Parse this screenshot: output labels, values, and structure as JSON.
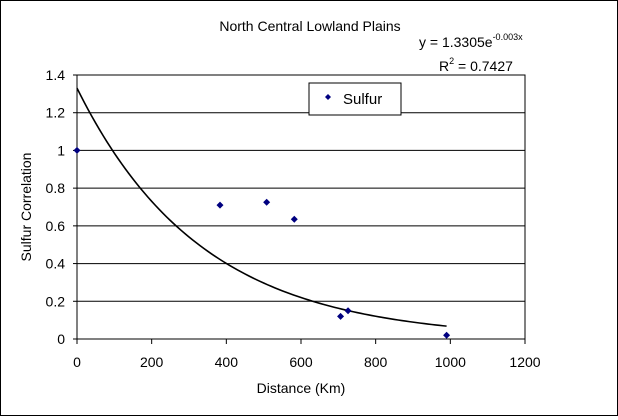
{
  "chart_data": {
    "type": "scatter",
    "title": "North Central Lowland Plains",
    "xlabel": "Distance (Km)",
    "ylabel": "Sulfur Correlation",
    "xlim": [
      0,
      1200
    ],
    "ylim": [
      0,
      1.4
    ],
    "xticks": [
      "0",
      "200",
      "400",
      "600",
      "800",
      "1000",
      "1200"
    ],
    "yticks": [
      "0",
      "0.2",
      "0.4",
      "0.6",
      "0.8",
      "1",
      "1.2",
      "1.4"
    ],
    "grid": "horizontal",
    "legend_position": "top-right",
    "series": [
      {
        "name": "Sulfur",
        "color": "#000080",
        "marker": "diamond",
        "x": [
          0,
          383,
          508,
          582,
          706,
          726,
          990
        ],
        "y": [
          1.0,
          0.71,
          0.725,
          0.635,
          0.12,
          0.15,
          0.02
        ]
      }
    ],
    "trendline": {
      "type": "exponential",
      "a": 1.3305,
      "b": -0.003,
      "x_range": [
        0,
        990
      ],
      "color": "#000000"
    },
    "equation": {
      "prefix": "y = 1.3305e",
      "exponent": "-0.003x",
      "r2_prefix": "R",
      "r2_sup": "2",
      "r2_value": " = 0.7427"
    }
  }
}
